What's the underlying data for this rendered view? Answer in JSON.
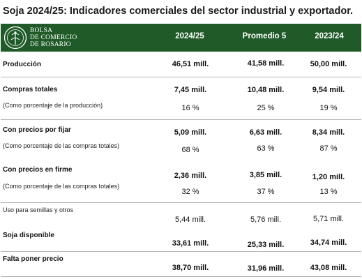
{
  "title": "Soja 2024/25: Indicadores comerciales del sector industrial y exportador.",
  "logo": {
    "line1": "BOLSA",
    "line2": "DE COMERCIO",
    "line3": "DE ROSARIO"
  },
  "columns": [
    "2024/25",
    "Promedio 5",
    "2023/24"
  ],
  "rows": {
    "produccion": {
      "label": "Producción",
      "values": [
        "46,51 mill.",
        "41,58 mill.",
        "50,00 mill."
      ]
    },
    "compras": {
      "label": "Compras totales",
      "values": [
        "7,45 mill.",
        "10,48 mill.",
        "9,54 mill."
      ],
      "sublabel": "(Como porcentaje de la producción)",
      "pct": [
        "16 %",
        "25 %",
        "19 %"
      ]
    },
    "fijar": {
      "label": "Con precios por fijar",
      "values": [
        "5,09 mill.",
        "6,63 mill.",
        "8,34 mill."
      ],
      "sublabel": "(Como porcentaje de las compras totales)",
      "pct": [
        "68 %",
        "63 %",
        "87 %"
      ]
    },
    "firme": {
      "label": "Con precios en firme",
      "values": [
        "2,36 mill.",
        "3,85 mill.",
        "1,20 mill."
      ],
      "sublabel": "(Como porcentaje de las compras totales)",
      "pct": [
        "32 %",
        "37 %",
        "13 %"
      ]
    },
    "semillas": {
      "label": "Uso para semillas y otros",
      "values": [
        "5,44 mill.",
        "5,76 mill.",
        "5,71 mill."
      ]
    },
    "disponible": {
      "label": "Soja disponible",
      "values": [
        "33,61 mill.",
        "25,33 mill.",
        "34,74 mill."
      ]
    },
    "falta": {
      "label": "Falta poner precio",
      "values": [
        "38,70 mill.",
        "31,96 mill.",
        "43,08 mill."
      ]
    }
  },
  "colors": {
    "header_bg": "#1f5a28",
    "separator": "#b5b5b5"
  }
}
